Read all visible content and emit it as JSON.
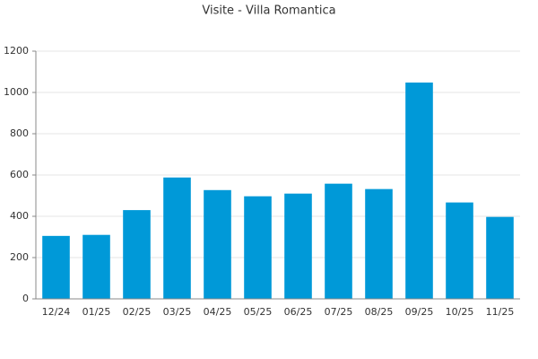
{
  "chart_data": {
    "type": "bar",
    "title": "Visite - Villa Romantica",
    "categories": [
      "12/24",
      "01/25",
      "02/25",
      "03/25",
      "04/25",
      "05/25",
      "06/25",
      "07/25",
      "08/25",
      "09/25",
      "10/25",
      "11/25"
    ],
    "values": [
      305,
      310,
      430,
      588,
      527,
      497,
      510,
      558,
      532,
      1048,
      467,
      397
    ],
    "color": "#0099d8",
    "ylim": [
      0,
      1200
    ],
    "yticks": [
      0,
      200,
      400,
      600,
      800,
      1000,
      1200
    ],
    "grid": true
  }
}
